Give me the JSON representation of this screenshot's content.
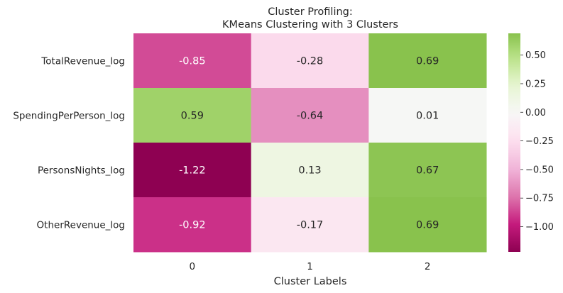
{
  "chart_data": {
    "type": "heatmap",
    "title_lines": [
      "Cluster Profiling:",
      "KMeans Clustering with 3 Clusters"
    ],
    "xlabel": "Cluster Labels",
    "ylabel": "",
    "x_categories": [
      "0",
      "1",
      "2"
    ],
    "y_categories": [
      "TotalRevenue_log",
      "SpendingPerPerson_log",
      "PersonsNights_log",
      "OtherRevenue_log"
    ],
    "values": [
      [
        -0.85,
        -0.28,
        0.69
      ],
      [
        0.59,
        -0.64,
        0.01
      ],
      [
        -1.22,
        0.13,
        0.67
      ],
      [
        -0.92,
        -0.17,
        0.69
      ]
    ],
    "value_labels": [
      [
        "-0.85",
        "-0.28",
        "0.69"
      ],
      [
        "0.59",
        "-0.64",
        "0.01"
      ],
      [
        "-1.22",
        "0.13",
        "0.67"
      ],
      [
        "-0.92",
        "-0.17",
        "0.69"
      ]
    ],
    "colormap": "PiYG",
    "vmin": -1.22,
    "vmax": 0.69,
    "center": 0,
    "colorbar_ticks": [
      0.5,
      0.25,
      0.0,
      -0.25,
      -0.5,
      -0.75,
      -1.0
    ],
    "colorbar_tick_labels": [
      "0.50",
      "0.25",
      "0.00",
      "−0.25",
      "−0.50",
      "−0.75",
      "−1.00"
    ]
  }
}
